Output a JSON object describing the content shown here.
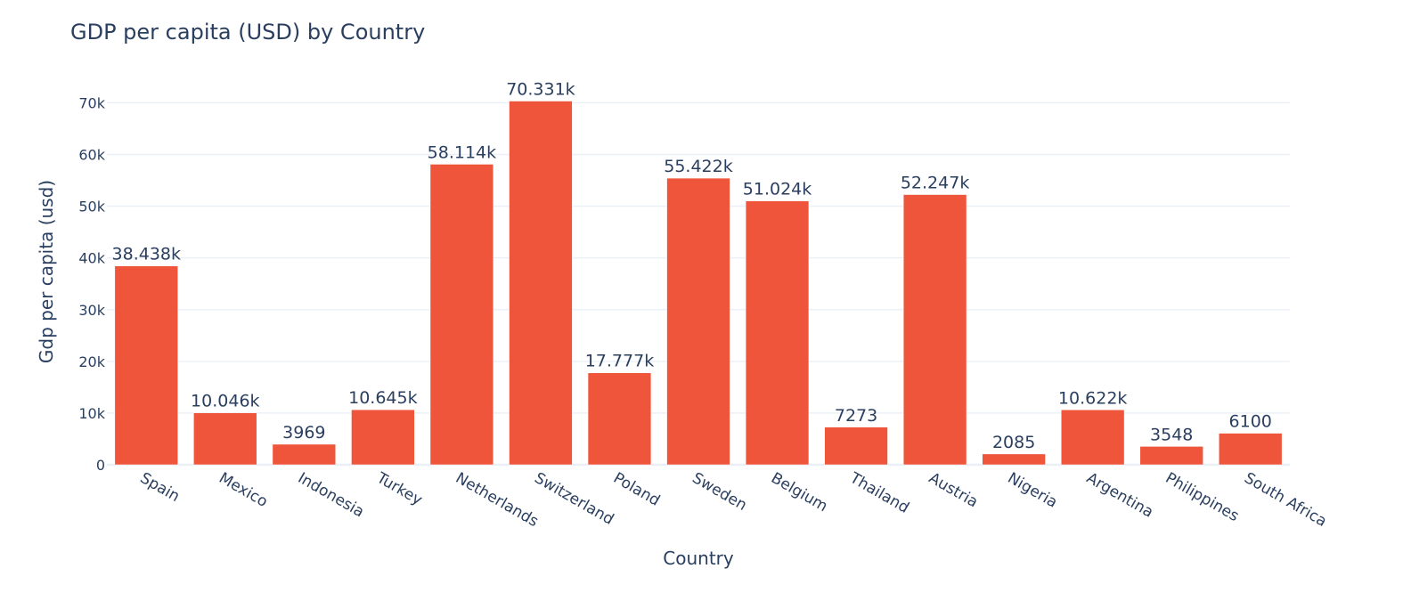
{
  "chart_data": {
    "type": "bar",
    "title": "GDP per capita (USD) by Country",
    "xlabel": "Country",
    "ylabel": "Gdp per capita (usd)",
    "categories": [
      "Spain",
      "Mexico",
      "Indonesia",
      "Turkey",
      "Netherlands",
      "Switzerland",
      "Poland",
      "Sweden",
      "Belgium",
      "Thailand",
      "Austria",
      "Nigeria",
      "Argentina",
      "Philippines",
      "South Africa"
    ],
    "values": [
      38438,
      10046,
      3969,
      10645,
      58114,
      70331,
      17777,
      55422,
      51024,
      7273,
      52247,
      2085,
      10622,
      3548,
      6100
    ],
    "value_labels": [
      "38.438k",
      "10.046k",
      "3969",
      "10.645k",
      "58.114k",
      "70.331k",
      "17.777k",
      "55.422k",
      "51.024k",
      "7273",
      "52.247k",
      "2085",
      "10.622k",
      "3548",
      "6100"
    ],
    "y_ticks": [
      0,
      10000,
      20000,
      30000,
      40000,
      50000,
      60000,
      70000
    ],
    "y_tick_labels": [
      "0",
      "10k",
      "20k",
      "30k",
      "40k",
      "50k",
      "60k",
      "70k"
    ],
    "ylim": [
      0,
      74033
    ],
    "grid": true,
    "legend": "none",
    "colors": {
      "bar": "#EF553B",
      "text": "#2a3f5f",
      "grid": "#ebf0f8"
    }
  }
}
